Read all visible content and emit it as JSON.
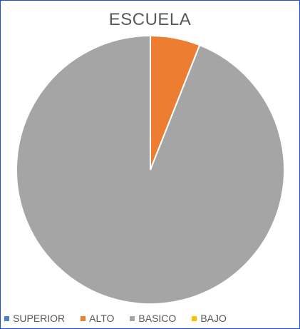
{
  "chart_data": {
    "type": "pie",
    "title": "ESCUELA",
    "categories": [
      "SUPERIOR",
      "ALTO",
      "BASICO",
      "BAJO"
    ],
    "values": [
      0,
      6,
      94,
      0
    ],
    "colors": [
      "#4f81bd",
      "#ed7d31",
      "#a5a5a5",
      "#ffc000"
    ],
    "legend_position": "bottom"
  }
}
